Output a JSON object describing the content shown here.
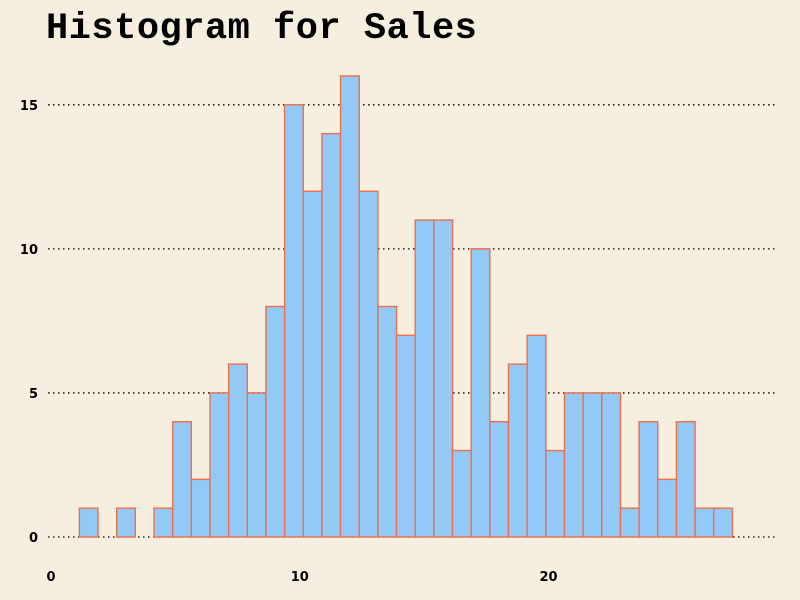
{
  "chart_data": {
    "type": "bar",
    "title": "Histogram for Sales",
    "xlabel": "",
    "ylabel": "",
    "xlim": [
      0,
      28.5
    ],
    "ylim": [
      0,
      16
    ],
    "xticks": [
      0,
      10,
      20
    ],
    "yticks": [
      0,
      5,
      10,
      15
    ],
    "bin_edges": [
      1.14,
      1.89,
      2.64,
      3.39,
      4.14,
      4.89,
      5.64,
      6.39,
      7.14,
      7.89,
      8.64,
      9.39,
      10.14,
      10.89,
      11.64,
      12.39,
      13.14,
      13.89,
      14.64,
      15.39,
      16.14,
      16.89,
      17.64,
      18.39,
      19.14,
      19.89,
      20.64,
      21.39,
      22.14,
      22.89,
      23.64,
      24.39,
      25.14,
      25.89,
      26.64,
      27.39
    ],
    "counts": [
      1,
      0,
      1,
      0,
      1,
      4,
      2,
      5,
      6,
      5,
      8,
      15,
      12,
      14,
      16,
      12,
      8,
      7,
      11,
      11,
      3,
      10,
      4,
      6,
      7,
      3,
      5,
      5,
      5,
      1,
      4,
      2,
      4,
      1,
      1
    ],
    "grid": "horizontal dotted",
    "colors": {
      "bar_fill": "#92c9f7",
      "bar_edge": "#ee6e4e",
      "background": "#f6eedf",
      "grid": "#000000"
    }
  }
}
